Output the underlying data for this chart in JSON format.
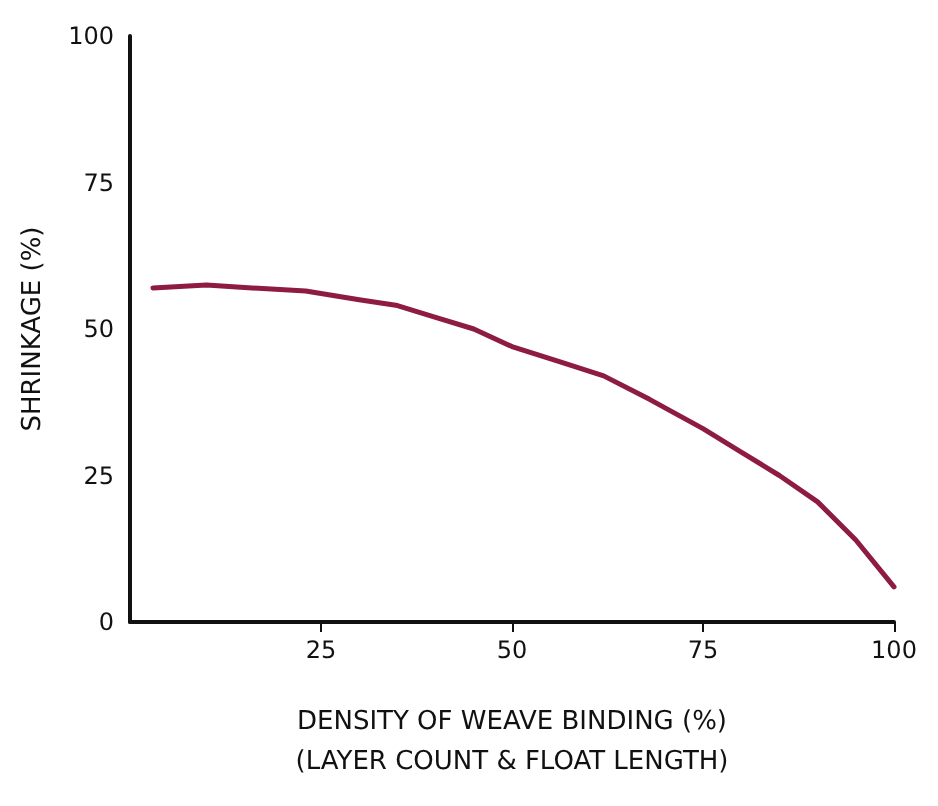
{
  "chart_data": {
    "type": "line",
    "xlabel": "DENSITY OF WEAVE BINDING (%)\n(LAYER COUNT & FLOAT LENGTH)",
    "ylabel": "SHRINKAGE (%)",
    "x": [
      3,
      10,
      16,
      23,
      30,
      35,
      40,
      45,
      50,
      56,
      62,
      68,
      75,
      80,
      85,
      90,
      95,
      100
    ],
    "series": [
      {
        "color": "#8e1b42",
        "values": [
          57,
          57.5,
          57,
          56.5,
          55,
          54,
          52,
          50,
          47,
          44.5,
          42,
          38,
          33,
          29,
          25,
          20.5,
          14,
          6
        ]
      }
    ],
    "xlim": [
      0,
      100
    ],
    "xticks": [
      25,
      50,
      75,
      100
    ],
    "ylim": [
      0,
      100
    ],
    "yticks": [
      0,
      25,
      50,
      75,
      100
    ],
    "grid": false,
    "marker": "none",
    "line_style": "solid"
  }
}
